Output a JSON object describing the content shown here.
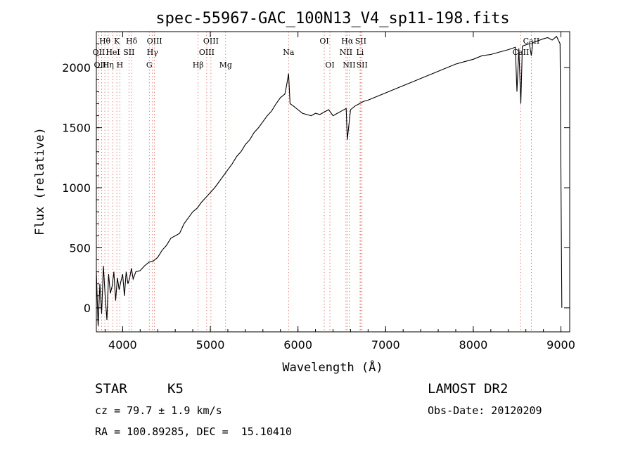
{
  "chart_data": {
    "type": "line",
    "title": "spec-55967-GAC_100N13_V4_sp11-198.fits",
    "xlabel": "Wavelength (Å)",
    "ylabel": "Flux (relative)",
    "xlim": [
      3700,
      9100
    ],
    "ylim": [
      -200,
      2300
    ],
    "xticks": [
      4000,
      5000,
      6000,
      7000,
      8000,
      9000
    ],
    "yticks": [
      0,
      500,
      1000,
      1500,
      2000
    ],
    "grid": false,
    "series": [
      {
        "x": [
          3700,
          3720,
          3740,
          3760,
          3780,
          3800,
          3820,
          3840,
          3860,
          3880,
          3900,
          3920,
          3940,
          3960,
          3980,
          4000,
          4020,
          4040,
          4060,
          4080,
          4100,
          4120,
          4150,
          4200,
          4250,
          4300,
          4350,
          4400,
          4450,
          4500,
          4550,
          4600,
          4650,
          4700,
          4750,
          4800,
          4850,
          4900,
          4950,
          5000,
          5050,
          5100,
          5150,
          5200,
          5250,
          5300,
          5350,
          5400,
          5450,
          5500,
          5550,
          5600,
          5650,
          5700,
          5750,
          5800,
          5850,
          5870,
          5893,
          5910,
          5950,
          6000,
          6050,
          6100,
          6150,
          6200,
          6250,
          6300,
          6350,
          6400,
          6450,
          6500,
          6550,
          6563,
          6600,
          6650,
          6700,
          6750,
          6800,
          6900,
          7000,
          7100,
          7200,
          7300,
          7400,
          7500,
          7600,
          7700,
          7800,
          7900,
          8000,
          8100,
          8200,
          8300,
          8400,
          8480,
          8498,
          8520,
          8542,
          8560,
          8600,
          8640,
          8662,
          8680,
          8720,
          8760,
          8800,
          8850,
          8900,
          8950,
          8990,
          9010
        ],
        "values": [
          300,
          -150,
          200,
          -50,
          350,
          100,
          -100,
          280,
          120,
          180,
          300,
          60,
          250,
          150,
          220,
          280,
          100,
          300,
          200,
          250,
          330,
          240,
          300,
          310,
          350,
          380,
          390,
          420,
          480,
          520,
          580,
          600,
          620,
          700,
          750,
          800,
          830,
          880,
          920,
          960,
          1000,
          1050,
          1100,
          1150,
          1200,
          1260,
          1300,
          1360,
          1400,
          1460,
          1500,
          1550,
          1600,
          1640,
          1700,
          1750,
          1780,
          1850,
          1950,
          1700,
          1680,
          1650,
          1620,
          1610,
          1600,
          1620,
          1610,
          1630,
          1650,
          1600,
          1620,
          1640,
          1660,
          1400,
          1650,
          1680,
          1700,
          1720,
          1730,
          1760,
          1790,
          1820,
          1850,
          1880,
          1910,
          1940,
          1970,
          2000,
          2030,
          2050,
          2070,
          2100,
          2110,
          2130,
          2150,
          2170,
          1800,
          2160,
          1700,
          2180,
          2190,
          2200,
          2100,
          2210,
          2220,
          2230,
          2240,
          2250,
          2230,
          2260,
          2200,
          0
        ]
      }
    ],
    "spectral_lines": [
      {
        "label": "Hθ",
        "wavelength": 3797,
        "row": 1
      },
      {
        "label": "K",
        "wavelength": 3934,
        "row": 1
      },
      {
        "label": "Hδ",
        "wavelength": 4102,
        "row": 1
      },
      {
        "label": "OIII",
        "wavelength": 4363,
        "row": 1
      },
      {
        "label": "OIII",
        "wavelength": 5007,
        "row": 1
      },
      {
        "label": "OI",
        "wavelength": 6300,
        "row": 1
      },
      {
        "label": "Hα",
        "wavelength": 6563,
        "row": 1
      },
      {
        "label": "SII",
        "wavelength": 6716,
        "row": 1
      },
      {
        "label": "CaII",
        "wavelength": 8662,
        "row": 1
      },
      {
        "label": "OII",
        "wavelength": 3727,
        "row": 2
      },
      {
        "label": "HeI",
        "wavelength": 3889,
        "row": 2
      },
      {
        "label": "SII",
        "wavelength": 4072,
        "row": 2
      },
      {
        "label": "Hγ",
        "wavelength": 4340,
        "row": 2
      },
      {
        "label": "OIII",
        "wavelength": 4959,
        "row": 2
      },
      {
        "label": "Na",
        "wavelength": 5893,
        "row": 2
      },
      {
        "label": "NII",
        "wavelength": 6548,
        "row": 2
      },
      {
        "label": "Li",
        "wavelength": 6708,
        "row": 2
      },
      {
        "label": "CaII",
        "wavelength": 8542,
        "row": 2
      },
      {
        "label": "OIII",
        "wavelength": 3760,
        "row": 3
      },
      {
        "label": "Hη",
        "wavelength": 3835,
        "row": 3
      },
      {
        "label": "H",
        "wavelength": 3968,
        "row": 3
      },
      {
        "label": "G",
        "wavelength": 4304,
        "row": 3
      },
      {
        "label": "Hβ",
        "wavelength": 4861,
        "row": 3
      },
      {
        "label": "Mg",
        "wavelength": 5175,
        "row": 3
      },
      {
        "label": "OI",
        "wavelength": 6364,
        "row": 3
      },
      {
        "label": "NII",
        "wavelength": 6584,
        "row": 3
      },
      {
        "label": "SII",
        "wavelength": 6731,
        "row": 3
      }
    ],
    "line_marker_color": "#e06060"
  },
  "info": {
    "class_label": "STAR",
    "subclass": "K5",
    "survey": "LAMOST DR2",
    "redshift": "cz = 79.7 ± 1.9 km/s",
    "obs_date": "Obs-Date: 20120209",
    "coords": "RA = 100.89285, DEC =  15.10410"
  }
}
